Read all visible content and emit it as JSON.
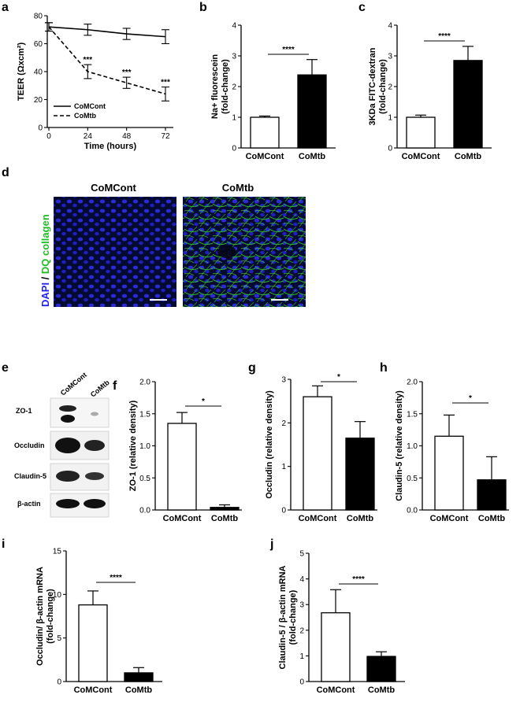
{
  "colors": {
    "white_bar": "#ffffff",
    "black_bar": "#000000",
    "dapi": "#2222ee",
    "dq": "#22bb22",
    "micrograph_bg": "#050a30"
  },
  "panel_labels": {
    "a": "a",
    "b": "b",
    "c": "c",
    "d": "d",
    "e": "e",
    "f": "f",
    "g": "g",
    "h": "h",
    "i": "i",
    "j": "j"
  },
  "panel_a": {
    "chart_data": {
      "type": "line",
      "xlabel": "Time (hours)",
      "ylabel": "TEER (Ωxcm²)",
      "xlim": [
        0,
        72
      ],
      "ylim": [
        0,
        80
      ],
      "xticks": [
        "0",
        "24",
        "48",
        "72"
      ],
      "yticks": [
        "0",
        "20",
        "40",
        "60",
        "80"
      ],
      "legend_position": "bottom-left",
      "series": [
        {
          "name": "CoMCont",
          "style": "solid",
          "x": [
            0,
            24,
            48,
            72
          ],
          "y": [
            72,
            70,
            67,
            65
          ],
          "err": [
            3,
            4,
            4,
            5
          ],
          "annot": [
            "",
            "",
            "",
            ""
          ]
        },
        {
          "name": "CoMtb",
          "style": "dashed",
          "x": [
            0,
            24,
            48,
            72
          ],
          "y": [
            72,
            40,
            32,
            24
          ],
          "err": [
            3,
            5,
            4,
            5
          ],
          "annot": [
            "",
            "***",
            "***",
            "***"
          ]
        }
      ]
    }
  },
  "panel_b": {
    "chart_data": {
      "type": "bar",
      "ylabel_line1": "Na+ fluorescein",
      "ylabel_line2": "(fold-change)",
      "ylim": [
        0,
        4
      ],
      "yticks": [
        "0",
        "1",
        "2",
        "3",
        "4"
      ],
      "categories": [
        "CoMCont",
        "CoMtb"
      ],
      "values": [
        1.0,
        2.38
      ],
      "err": [
        0.04,
        0.5
      ],
      "sig": "****"
    }
  },
  "panel_c": {
    "chart_data": {
      "type": "bar",
      "ylabel_line1": "3KDa FITC-dextran",
      "ylabel_line2": "(fold-change)",
      "ylim": [
        0,
        4
      ],
      "yticks": [
        "0",
        "1",
        "2",
        "3",
        "4"
      ],
      "categories": [
        "CoMCont",
        "CoMtb"
      ],
      "values": [
        1.0,
        2.85
      ],
      "err": [
        0.07,
        0.46
      ],
      "sig": "****"
    }
  },
  "panel_d": {
    "stain_dapi": "DAPI",
    "stain_sep": " / ",
    "stain_dq": "DQ collagen",
    "titles": [
      "CoMCont",
      "CoMtb"
    ]
  },
  "panel_e": {
    "lanes": [
      "CoMCont",
      "CoMtb"
    ],
    "bands": [
      "ZO-1",
      "Occludin",
      "Claudin-5",
      "β-actin"
    ]
  },
  "panel_f": {
    "chart_data": {
      "type": "bar",
      "ylabel": "ZO-1 (relative density)",
      "ylim": [
        0,
        2.0
      ],
      "yticks": [
        "0.0",
        "0.5",
        "1.0",
        "1.5",
        "2.0"
      ],
      "categories": [
        "CoMCont",
        "CoMtb"
      ],
      "values": [
        1.35,
        0.04
      ],
      "err": [
        0.17,
        0.04
      ],
      "sig": "*"
    }
  },
  "panel_g": {
    "chart_data": {
      "type": "bar",
      "ylabel": "Occludin (relative density)",
      "ylim": [
        0,
        3
      ],
      "yticks": [
        "0",
        "1",
        "2",
        "3"
      ],
      "categories": [
        "CoMCont",
        "CoMtb"
      ],
      "values": [
        2.6,
        1.65
      ],
      "err": [
        0.25,
        0.38
      ],
      "sig": "*"
    }
  },
  "panel_h": {
    "chart_data": {
      "type": "bar",
      "ylabel": "Claudin-5 (relative density)",
      "ylim": [
        0,
        2.0
      ],
      "yticks": [
        "0.0",
        "0.5",
        "1.0",
        "1.5",
        "2.0"
      ],
      "categories": [
        "CoMCont",
        "CoMtb"
      ],
      "values": [
        1.15,
        0.47
      ],
      "err": [
        0.33,
        0.36
      ],
      "sig": "*"
    }
  },
  "panel_i": {
    "chart_data": {
      "type": "bar",
      "ylabel_line1": "Occludin/ β-actin mRNA",
      "ylabel_line2": "(fold-change)",
      "ylim": [
        0,
        15
      ],
      "yticks": [
        "0",
        "5",
        "10",
        "15"
      ],
      "categories": [
        "CoMCont",
        "CoMtb"
      ],
      "values": [
        8.8,
        1.0
      ],
      "err": [
        1.6,
        0.6
      ],
      "sig": "****"
    }
  },
  "panel_j": {
    "chart_data": {
      "type": "bar",
      "ylabel_line1": "Claudin-5 / β-actin mRNA",
      "ylabel_line2": "(fold-change)",
      "ylim": [
        0,
        5
      ],
      "yticks": [
        "0",
        "1",
        "2",
        "3",
        "4",
        "5"
      ],
      "categories": [
        "CoMCont",
        "CoMtb"
      ],
      "values": [
        2.68,
        0.98
      ],
      "err": [
        0.9,
        0.18
      ],
      "sig": "****"
    }
  }
}
